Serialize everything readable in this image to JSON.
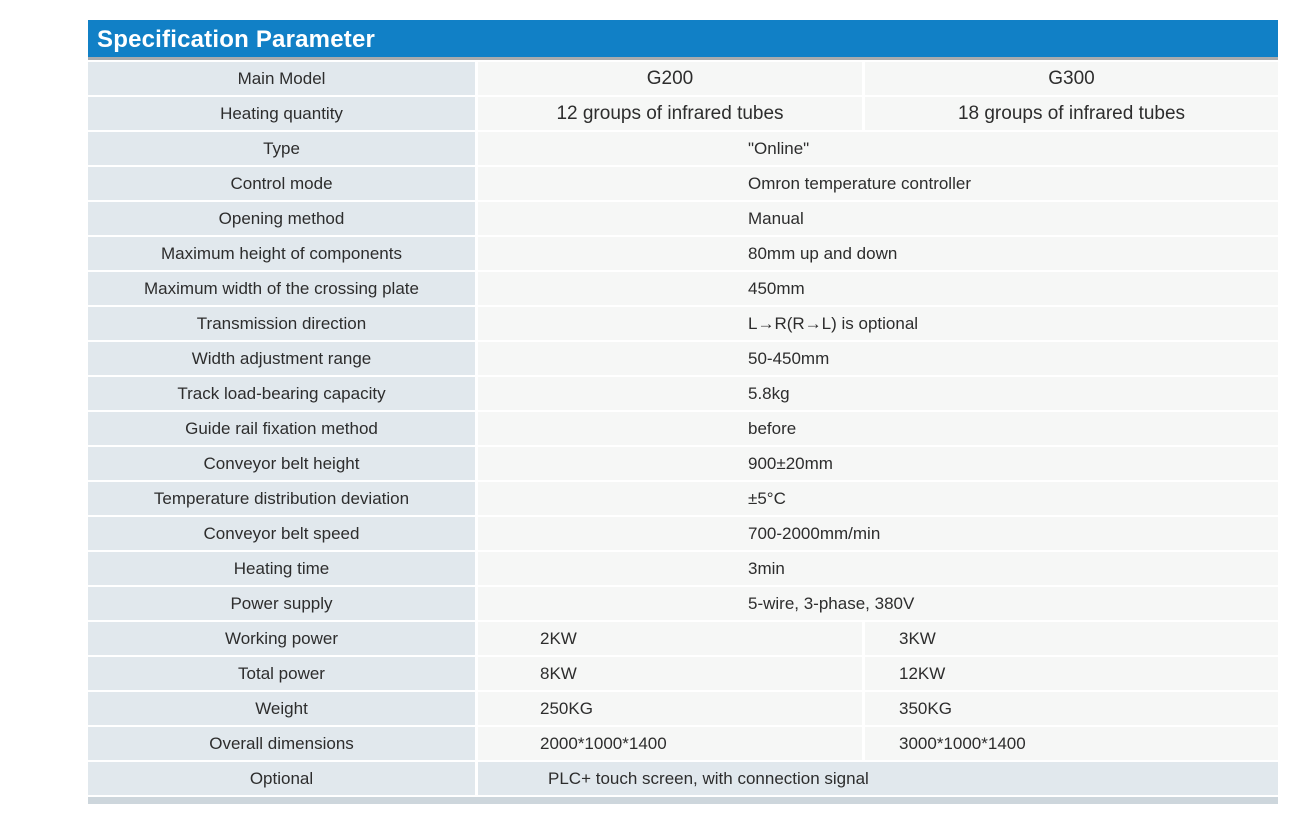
{
  "title": "Specification Parameter",
  "colors": {
    "header_bg": "#1180c6",
    "header_text": "#ffffff",
    "label_cell_bg": "#e1e8ed",
    "value_cell_bg": "#f6f7f6",
    "header_shadow": "#a9abad",
    "bottom_strip": "#cdd6dc",
    "text": "#2d2d2d"
  },
  "table": {
    "models": [
      "G200",
      "G300"
    ],
    "rows": [
      {
        "label": "Main Model",
        "values": [
          "G200",
          "G300"
        ],
        "style": "model"
      },
      {
        "label": "Heating quantity",
        "values": [
          "12 groups of infrared tubes",
          "18 groups of infrared tubes"
        ],
        "style": "model"
      },
      {
        "label": "Type",
        "value": "\"Online\""
      },
      {
        "label": "Control mode",
        "value": "Omron temperature controller"
      },
      {
        "label": "Opening method",
        "value": "Manual"
      },
      {
        "label": "Maximum height of components",
        "value": "80mm up and down"
      },
      {
        "label": "Maximum width of the crossing plate",
        "value": "450mm"
      },
      {
        "label": "Transmission direction",
        "value": "L→R(R→L) is optional"
      },
      {
        "label": "Width adjustment range",
        "value": "50-450mm"
      },
      {
        "label": "Track load-bearing capacity",
        "value": "5.8kg"
      },
      {
        "label": "Guide rail fixation method",
        "value": "before"
      },
      {
        "label": "Conveyor belt height",
        "value": "900±20mm"
      },
      {
        "label": "Temperature distribution deviation",
        "value": "±5°C"
      },
      {
        "label": "Conveyor belt speed",
        "value": "700-2000mm/min"
      },
      {
        "label": "Heating time",
        "value": "3min"
      },
      {
        "label": "Power supply",
        "value": "5-wire, 3-phase, 380V"
      },
      {
        "label": "Working power",
        "values": [
          "2KW",
          "3KW"
        ]
      },
      {
        "label": "Total power",
        "values": [
          "8KW",
          "12KW"
        ]
      },
      {
        "label": "Weight",
        "values": [
          "250KG",
          "350KG"
        ]
      },
      {
        "label": "Overall dimensions",
        "values": [
          "2000*1000*1400",
          "3000*1000*1400"
        ]
      },
      {
        "label": "Optional",
        "value": "PLC+ touch screen, with connection signal",
        "style": "highlight"
      }
    ]
  }
}
